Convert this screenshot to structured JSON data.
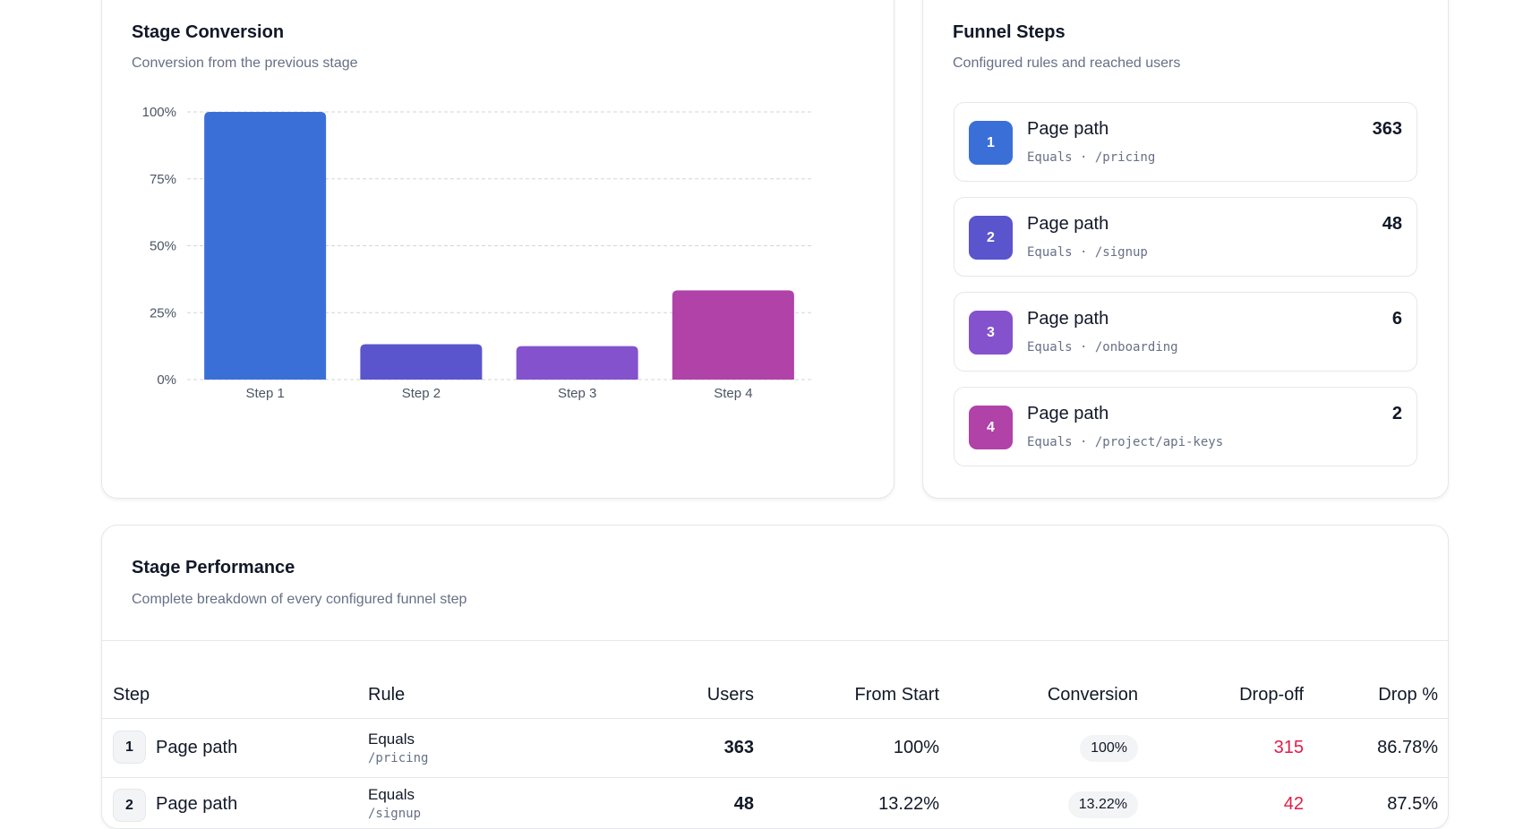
{
  "stage_conversion": {
    "title": "Stage Conversion",
    "subtitle": "Conversion from the previous stage"
  },
  "chart_data": {
    "type": "bar",
    "categories": [
      "Step 1",
      "Step 2",
      "Step 3",
      "Step 4"
    ],
    "values": [
      100,
      13.22,
      12.5,
      33.33
    ],
    "colors": [
      "#3B6FD8",
      "#5A55CD",
      "#8452CC",
      "#B042A8"
    ],
    "y_ticks": [
      "100%",
      "75%",
      "50%",
      "25%",
      "0%"
    ],
    "y_tick_values": [
      100,
      75,
      50,
      25,
      0
    ],
    "ylim": [
      0,
      100
    ],
    "grid": true
  },
  "funnel_steps": {
    "title": "Funnel Steps",
    "subtitle": "Configured rules and reached users",
    "items": [
      {
        "num": "1",
        "name": "Page path",
        "rule": "Equals · /pricing",
        "users": "363",
        "color": "#3B6FD8"
      },
      {
        "num": "2",
        "name": "Page path",
        "rule": "Equals · /signup",
        "users": "48",
        "color": "#5A55CD"
      },
      {
        "num": "3",
        "name": "Page path",
        "rule": "Equals · /onboarding",
        "users": "6",
        "color": "#8452CC"
      },
      {
        "num": "4",
        "name": "Page path",
        "rule": "Equals · /project/api-keys",
        "users": "2",
        "color": "#B042A8"
      }
    ]
  },
  "stage_performance": {
    "title": "Stage Performance",
    "subtitle": "Complete breakdown of every configured funnel step",
    "columns": [
      "Step",
      "Rule",
      "Users",
      "From Start",
      "Conversion",
      "Drop-off",
      "Drop %"
    ],
    "rows": [
      {
        "num": "1",
        "name": "Page path",
        "rule_op": "Equals",
        "rule_val": "/pricing",
        "users": "363",
        "from_start": "100%",
        "conversion": "100%",
        "dropoff": "315",
        "drop_pct": "86.78%"
      },
      {
        "num": "2",
        "name": "Page path",
        "rule_op": "Equals",
        "rule_val": "/signup",
        "users": "48",
        "from_start": "13.22%",
        "conversion": "13.22%",
        "dropoff": "42",
        "drop_pct": "87.5%"
      }
    ]
  },
  "colors": {
    "dropoff": "#E11D48",
    "border": "#e5e7eb",
    "muted": "#667085"
  }
}
